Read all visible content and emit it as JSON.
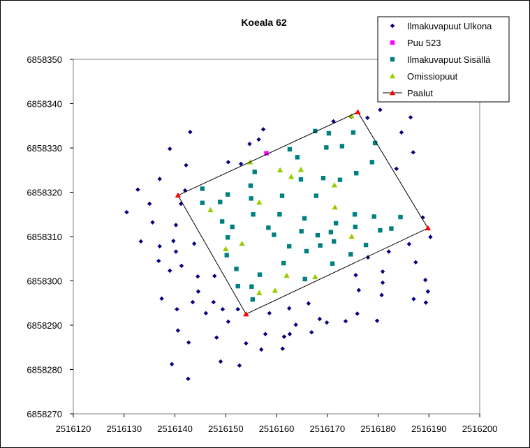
{
  "chart_data": {
    "type": "scatter",
    "title": "Koeala 62",
    "xlabel": "",
    "ylabel": "",
    "xlim": [
      2516120,
      2516200
    ],
    "ylim": [
      6858270,
      6858350
    ],
    "x_ticks": [
      2516120,
      2516130,
      2516140,
      2516150,
      2516160,
      2516170,
      2516180,
      2516190,
      2516200
    ],
    "y_ticks": [
      6858270,
      6858280,
      6858290,
      6858300,
      6858310,
      6858320,
      6858330,
      6858340,
      6858350
    ],
    "grid": false,
    "legend_position": "top-right",
    "series": [
      {
        "name": "Ilmakuvapuut Ulkona",
        "marker": "diamond",
        "color": "#000080",
        "points": [
          [
            2516130.5,
            6858315.5
          ],
          [
            2516132.7,
            6858320.6
          ],
          [
            2516133.3,
            6858308.9
          ],
          [
            2516135.0,
            6858317.4
          ],
          [
            2516135.6,
            6858313.2
          ],
          [
            2516136.8,
            6858304.5
          ],
          [
            2516137.0,
            6858307.8
          ],
          [
            2516137.4,
            6858296.0
          ],
          [
            2516137.0,
            6858323.0
          ],
          [
            2516139.0,
            6858329.8
          ],
          [
            2516139.0,
            6858302.3
          ],
          [
            2516139.4,
            6858281.2
          ],
          [
            2516139.7,
            6858309.0
          ],
          [
            2516140.2,
            6858312.6
          ],
          [
            2516140.2,
            6858306.6
          ],
          [
            2516140.4,
            6858293.6
          ],
          [
            2516140.6,
            6858288.8
          ],
          [
            2516141.3,
            6858303.4
          ],
          [
            2516141.2,
            6858317.4
          ],
          [
            2516142.0,
            6858320.4
          ],
          [
            2516142.2,
            6858326.1
          ],
          [
            2516142.6,
            6858277.9
          ],
          [
            2516142.7,
            6858286.1
          ],
          [
            2516143.0,
            6858333.6
          ],
          [
            2516143.5,
            6858295.2
          ],
          [
            2516143.8,
            6858308.4
          ],
          [
            2516144.6,
            6858297.6
          ],
          [
            2516144.5,
            6858301.0
          ],
          [
            2516146.1,
            6858292.7
          ],
          [
            2516147.6,
            6858295.2
          ],
          [
            2516147.8,
            6858301.1
          ],
          [
            2516148.2,
            6858287.2
          ],
          [
            2516149.0,
            6858281.8
          ],
          [
            2516149.4,
            6858293.6
          ],
          [
            2516150.5,
            6858290.8
          ],
          [
            2516150.5,
            6858326.8
          ],
          [
            2516152.4,
            6858293.6
          ],
          [
            2516152.7,
            6858280.9
          ],
          [
            2516153.0,
            6858326.4
          ],
          [
            2516154.0,
            6858285.9
          ],
          [
            2516154.7,
            6858330.9
          ],
          [
            2516156.5,
            6858331.9
          ],
          [
            2516157.0,
            6858284.5
          ],
          [
            2516157.4,
            6858334.2
          ],
          [
            2516157.8,
            6858288.0
          ],
          [
            2516158.6,
            6858292.7
          ],
          [
            2516161.2,
            6858284.7
          ],
          [
            2516161.5,
            6858287.4
          ],
          [
            2516162.5,
            6858293.8
          ],
          [
            2516162.6,
            6858288.0
          ],
          [
            2516163.8,
            6858290.1
          ],
          [
            2516166.3,
            6858294.9
          ],
          [
            2516166.9,
            6858288.4
          ],
          [
            2516168.5,
            6858291.4
          ],
          [
            2516169.9,
            6858290.6
          ],
          [
            2516171.2,
            6858336.0
          ],
          [
            2516173.6,
            6858290.9
          ],
          [
            2516174.7,
            6858337.0
          ],
          [
            2516175.6,
            6858301.3
          ],
          [
            2516175.9,
            6858292.6
          ],
          [
            2516176.2,
            6858297.9
          ],
          [
            2516177.9,
            6858336.8
          ],
          [
            2516178.0,
            6858305.3
          ],
          [
            2516179.8,
            6858291.0
          ],
          [
            2516180.4,
            6858338.6
          ],
          [
            2516180.7,
            6858296.8
          ],
          [
            2516180.9,
            6858299.6
          ],
          [
            2516180.9,
            6858302.1
          ],
          [
            2516182.1,
            6858306.6
          ],
          [
            2516183.6,
            6858325.3
          ],
          [
            2516184.6,
            6858333.5
          ],
          [
            2516186.1,
            6858308.3
          ],
          [
            2516186.4,
            6858336.9
          ],
          [
            2516186.9,
            6858329.0
          ],
          [
            2516187.0,
            6858295.9
          ],
          [
            2516187.4,
            6858304.2
          ],
          [
            2516188.8,
            6858314.3
          ],
          [
            2516189.3,
            6858300.2
          ],
          [
            2516189.4,
            6858295.1
          ],
          [
            2516189.8,
            6858297.6
          ],
          [
            2516190.3,
            6858309.9
          ]
        ]
      },
      {
        "name": "Puu 523",
        "marker": "square",
        "color": "#FF00FF",
        "points": [
          [
            2516158.0,
            6858328.8
          ]
        ]
      },
      {
        "name": "Ilmakuvapuut Sisällä",
        "marker": "square",
        "color": "#008080",
        "points": [
          [
            2516145.4,
            6858320.8
          ],
          [
            2516145.4,
            6858317.6
          ],
          [
            2516148.9,
            6858317.8
          ],
          [
            2516149.3,
            6858313.4
          ],
          [
            2516150.2,
            6858305.8
          ],
          [
            2516150.4,
            6858319.5
          ],
          [
            2516150.4,
            6858309.8
          ],
          [
            2516151.3,
            6858312.2
          ],
          [
            2516152.1,
            6858302.7
          ],
          [
            2516152.4,
            6858298.8
          ],
          [
            2516154.9,
            6858321.5
          ],
          [
            2516155.0,
            6858318.6
          ],
          [
            2516155.1,
            6858298.7
          ],
          [
            2516155.3,
            6858295.8
          ],
          [
            2516155.4,
            6858315.0
          ],
          [
            2516155.7,
            6858324.6
          ],
          [
            2516156.7,
            6858301.4
          ],
          [
            2516158.4,
            6858312.0
          ],
          [
            2516159.5,
            6858310.4
          ],
          [
            2516160.6,
            6858315.0
          ],
          [
            2516161.1,
            6858319.2
          ],
          [
            2516161.4,
            6858304.0
          ],
          [
            2516162.5,
            6858307.8
          ],
          [
            2516162.6,
            6858329.7
          ],
          [
            2516164.1,
            6858327.9
          ],
          [
            2516164.8,
            6858322.9
          ],
          [
            2516164.9,
            6858311.2
          ],
          [
            2516165.5,
            6858314.1
          ],
          [
            2516165.6,
            6858300.4
          ],
          [
            2516165.9,
            6858306.7
          ],
          [
            2516167.6,
            6858333.8
          ],
          [
            2516167.8,
            6858319.2
          ],
          [
            2516168.1,
            6858310.3
          ],
          [
            2516168.6,
            6858308.0
          ],
          [
            2516169.2,
            6858323.2
          ],
          [
            2516169.8,
            6858330.1
          ],
          [
            2516170.3,
            6858333.3
          ],
          [
            2516170.7,
            6858311.0
          ],
          [
            2516171.0,
            6858303.9
          ],
          [
            2516171.3,
            6858308.9
          ],
          [
            2516171.7,
            6858313.0
          ],
          [
            2516172.5,
            6858322.8
          ],
          [
            2516172.9,
            6858330.4
          ],
          [
            2516174.6,
            6858306.0
          ],
          [
            2516175.1,
            6858333.5
          ],
          [
            2516175.4,
            6858315.0
          ],
          [
            2516175.5,
            6858312.2
          ],
          [
            2516175.7,
            6858324.3
          ],
          [
            2516177.6,
            6858308.1
          ],
          [
            2516178.8,
            6858326.8
          ],
          [
            2516179.2,
            6858314.5
          ],
          [
            2516179.4,
            6858331.1
          ],
          [
            2516180.4,
            6858311.4
          ],
          [
            2516182.6,
            6858311.8
          ],
          [
            2516184.4,
            6858314.4
          ]
        ]
      },
      {
        "name": "Omissiopuut",
        "marker": "triangle",
        "color": "#99CC00",
        "points": [
          [
            2516147.0,
            6858316.0
          ],
          [
            2516150.0,
            6858307.2
          ],
          [
            2516153.2,
            6858308.4
          ],
          [
            2516154.8,
            6858326.8
          ],
          [
            2516156.6,
            6858317.7
          ],
          [
            2516156.6,
            6858297.3
          ],
          [
            2516159.7,
            6858297.8
          ],
          [
            2516160.7,
            6858325.0
          ],
          [
            2516162.0,
            6858301.2
          ],
          [
            2516162.9,
            6858323.5
          ],
          [
            2516164.8,
            6858325.1
          ],
          [
            2516167.6,
            6858300.9
          ],
          [
            2516171.4,
            6858321.6
          ],
          [
            2516171.5,
            6858316.6
          ],
          [
            2516174.8,
            6858310.0
          ],
          [
            2516174.8,
            6858337.2
          ]
        ]
      },
      {
        "name": "Paalut",
        "marker": "triangle",
        "color": "#FF0000",
        "line_color": "#000000",
        "closed": true,
        "points": [
          [
            2516140.6,
            6858319.3
          ],
          [
            2516176.0,
            6858338.1
          ],
          [
            2516189.8,
            6858311.9
          ],
          [
            2516154.0,
            6858292.5
          ]
        ]
      }
    ]
  }
}
